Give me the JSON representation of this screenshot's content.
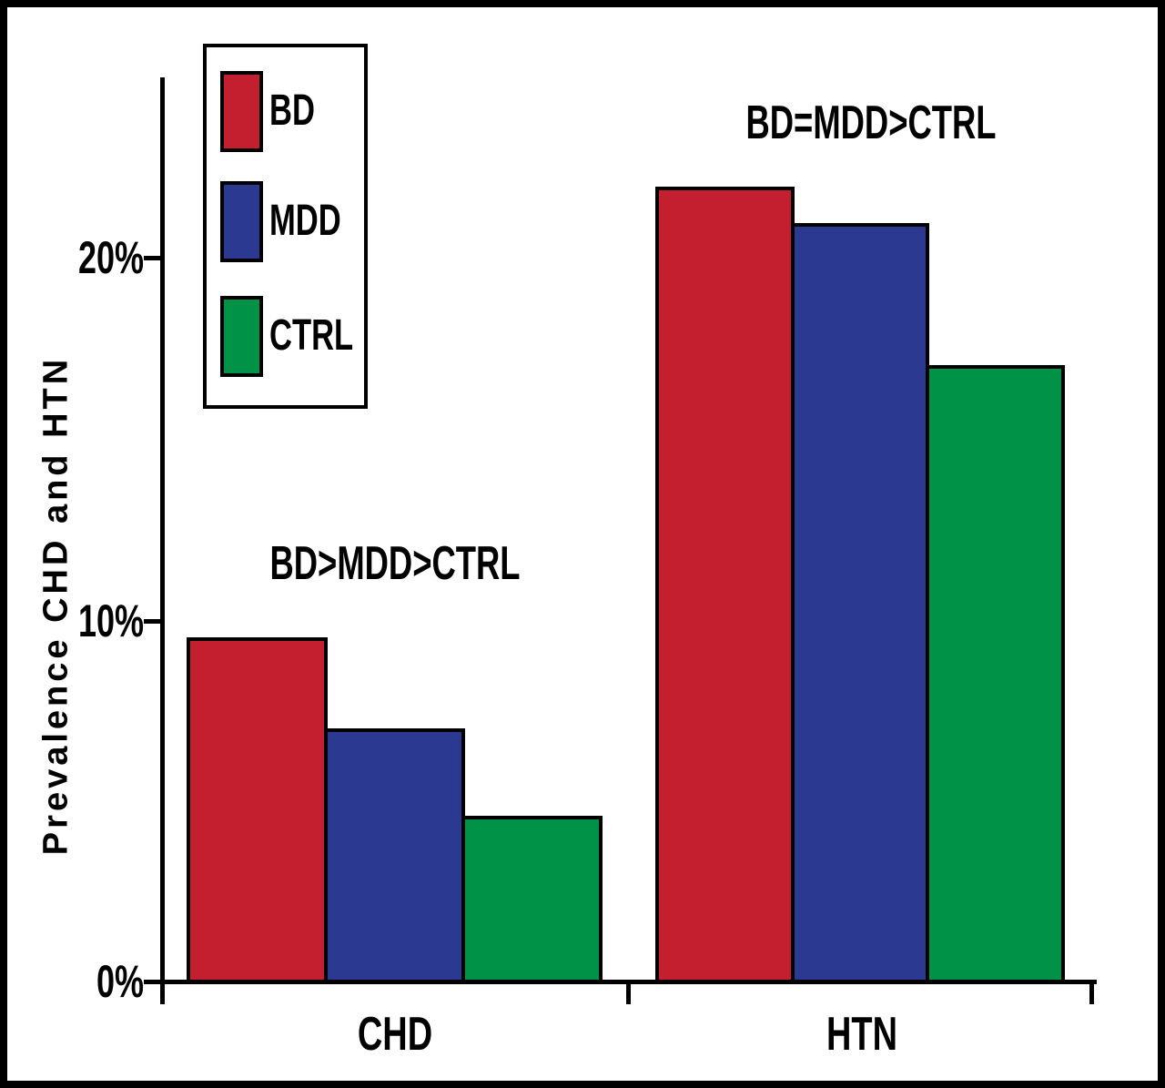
{
  "figure": {
    "background": "#ffffff",
    "border_color": "#000000",
    "axis_color": "#000000"
  },
  "chart_data": {
    "type": "bar",
    "title": "",
    "xlabel": "",
    "ylabel": "Prevalence CHD and HTN",
    "categories": [
      "CHD",
      "HTN"
    ],
    "series": [
      {
        "name": "BD",
        "color": "#c41f2e",
        "values": [
          9.4,
          21.8
        ]
      },
      {
        "name": "MDD",
        "color": "#2b3990",
        "values": [
          6.9,
          20.8
        ]
      },
      {
        "name": "CTRL",
        "color": "#009347",
        "values": [
          4.5,
          16.9
        ]
      }
    ],
    "y_ticks": [
      "0%",
      "10%",
      "20%"
    ],
    "y_tick_values": [
      0,
      10,
      20
    ],
    "ylim": [
      0,
      24.8
    ],
    "grid": "off",
    "legend": {
      "position": "upper-left",
      "entries": [
        "BD",
        "MDD",
        "CTRL"
      ]
    },
    "annotations": [
      {
        "text": "BD>MDD>CTRL",
        "category": "CHD"
      },
      {
        "text": "BD=MDD>CTRL",
        "category": "HTN"
      }
    ]
  }
}
